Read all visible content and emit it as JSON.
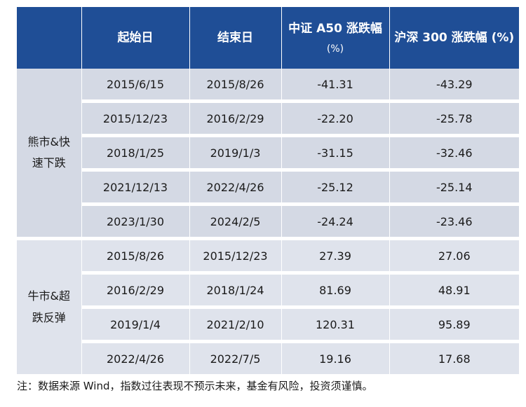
{
  "table": {
    "headers": {
      "col0": "",
      "start": "起始日",
      "end": "结束日",
      "a50_line1": "中证 A50 涨跌幅",
      "a50_line2": "(%)",
      "hs300": "沪深 300 涨跌幅 (%)"
    },
    "groups": [
      {
        "label_line1": "熊市&快",
        "label_line2": "速下跌",
        "rows": [
          {
            "start": "2015/6/15",
            "end": "2015/8/26",
            "a50": "-41.31",
            "hs300": "-43.29"
          },
          {
            "start": "2015/12/23",
            "end": "2016/2/29",
            "a50": "-22.20",
            "hs300": "-25.78"
          },
          {
            "start": "2018/1/25",
            "end": "2019/1/3",
            "a50": "-31.15",
            "hs300": "-32.46"
          },
          {
            "start": "2021/12/13",
            "end": "2022/4/26",
            "a50": "-25.12",
            "hs300": "-25.14"
          },
          {
            "start": "2023/1/30",
            "end": "2024/2/5",
            "a50": "-24.24",
            "hs300": "-23.46"
          }
        ]
      },
      {
        "label_line1": "牛市&超",
        "label_line2": "跌反弹",
        "rows": [
          {
            "start": "2015/8/26",
            "end": "2015/12/23",
            "a50": "27.39",
            "hs300": "27.06"
          },
          {
            "start": "2016/2/29",
            "end": "2018/1/24",
            "a50": "81.69",
            "hs300": "48.91"
          },
          {
            "start": "2019/1/4",
            "end": "2021/2/10",
            "a50": "120.31",
            "hs300": "95.89"
          },
          {
            "start": "2022/4/26",
            "end": "2022/7/5",
            "a50": "19.16",
            "hs300": "17.68"
          }
        ]
      }
    ]
  },
  "note": "注：数据来源 Wind，指数过往表现不预示未来，基金有风险，投资须谨慎。",
  "colors": {
    "header_bg": "#1f4e96",
    "row_bg_bear": "#d4d9e4",
    "row_bg_bull": "#dfe3ec"
  }
}
